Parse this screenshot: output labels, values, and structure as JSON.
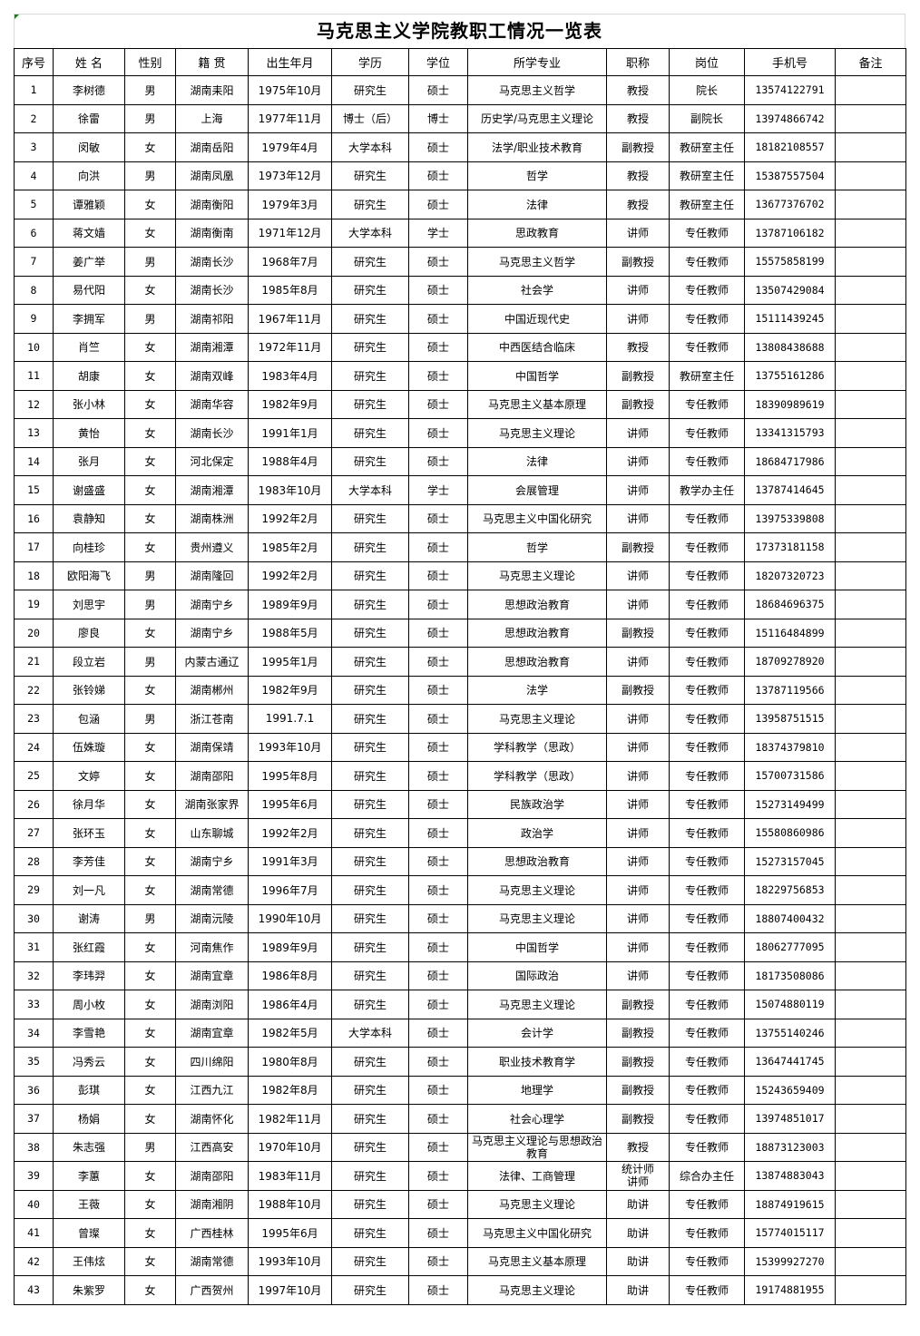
{
  "title": "马克思主义学院教职工情况一览表",
  "headers": [
    "序号",
    "姓 名",
    "性别",
    "籍 贯",
    "出生年月",
    "学历",
    "学位",
    "所学专业",
    "职称",
    "岗位",
    "手机号",
    "备注"
  ],
  "rows": [
    [
      "1",
      "李树德",
      "男",
      "湖南耒阳",
      "1975年10月",
      "研究生",
      "硕士",
      "马克思主义哲学",
      "教授",
      "院长",
      "13574122791",
      ""
    ],
    [
      "2",
      "徐雷",
      "男",
      "上海",
      "1977年11月",
      "博士（后）",
      "博士",
      "历史学/马克思主义理论",
      "教授",
      "副院长",
      "13974866742",
      ""
    ],
    [
      "3",
      "闵敏",
      "女",
      "湖南岳阳",
      "1979年4月",
      "大学本科",
      "硕士",
      "法学/职业技术教育",
      "副教授",
      "教研室主任",
      "18182108557",
      ""
    ],
    [
      "4",
      "向洪",
      "男",
      "湖南凤凰",
      "1973年12月",
      "研究生",
      "硕士",
      "哲学",
      "教授",
      "教研室主任",
      "15387557504",
      ""
    ],
    [
      "5",
      "谭雅颖",
      "女",
      "湖南衡阳",
      "1979年3月",
      "研究生",
      "硕士",
      "法律",
      "教授",
      "教研室主任",
      "13677376702",
      ""
    ],
    [
      "6",
      "蒋文嫱",
      "女",
      "湖南衡南",
      "1971年12月",
      "大学本科",
      "学士",
      "思政教育",
      "讲师",
      "专任教师",
      "13787106182",
      ""
    ],
    [
      "7",
      "姜广举",
      "男",
      "湖南长沙",
      "1968年7月",
      "研究生",
      "硕士",
      "马克思主义哲学",
      "副教授",
      "专任教师",
      "15575858199",
      ""
    ],
    [
      "8",
      "易代阳",
      "女",
      "湖南长沙",
      "1985年8月",
      "研究生",
      "硕士",
      "社会学",
      "讲师",
      "专任教师",
      "13507429084",
      ""
    ],
    [
      "9",
      "李拥军",
      "男",
      "湖南祁阳",
      "1967年11月",
      "研究生",
      "硕士",
      "中国近现代史",
      "讲师",
      "专任教师",
      "15111439245",
      ""
    ],
    [
      "10",
      "肖竺",
      "女",
      "湖南湘潭",
      "1972年11月",
      "研究生",
      "硕士",
      "中西医结合临床",
      "教授",
      "专任教师",
      "13808438688",
      ""
    ],
    [
      "11",
      "胡康",
      "女",
      "湖南双峰",
      "1983年4月",
      "研究生",
      "硕士",
      "中国哲学",
      "副教授",
      "教研室主任",
      "13755161286",
      ""
    ],
    [
      "12",
      "张小林",
      "女",
      "湖南华容",
      "1982年9月",
      "研究生",
      "硕士",
      "马克思主义基本原理",
      "副教授",
      "专任教师",
      "18390989619",
      ""
    ],
    [
      "13",
      "黄怡",
      "女",
      "湖南长沙",
      "1991年1月",
      "研究生",
      "硕士",
      "马克思主义理论",
      "讲师",
      "专任教师",
      "13341315793",
      ""
    ],
    [
      "14",
      "张月",
      "女",
      "河北保定",
      "1988年4月",
      "研究生",
      "硕士",
      "法律",
      "讲师",
      "专任教师",
      "18684717986",
      ""
    ],
    [
      "15",
      "谢盛盛",
      "女",
      "湖南湘潭",
      "1983年10月",
      "大学本科",
      "学士",
      "会展管理",
      "讲师",
      "教学办主任",
      "13787414645",
      ""
    ],
    [
      "16",
      "袁静知",
      "女",
      "湖南株洲",
      "1992年2月",
      "研究生",
      "硕士",
      "马克思主义中国化研究",
      "讲师",
      "专任教师",
      "13975339808",
      ""
    ],
    [
      "17",
      "向桂珍",
      "女",
      "贵州遵义",
      "1985年2月",
      "研究生",
      "硕士",
      "哲学",
      "副教授",
      "专任教师",
      "17373181158",
      ""
    ],
    [
      "18",
      "欧阳海飞",
      "男",
      "湖南隆回",
      "1992年2月",
      "研究生",
      "硕士",
      "马克思主义理论",
      "讲师",
      "专任教师",
      "18207320723",
      ""
    ],
    [
      "19",
      "刘思宇",
      "男",
      "湖南宁乡",
      "1989年9月",
      "研究生",
      "硕士",
      "思想政治教育",
      "讲师",
      "专任教师",
      "18684696375",
      ""
    ],
    [
      "20",
      "廖良",
      "女",
      "湖南宁乡",
      "1988年5月",
      "研究生",
      "硕士",
      "思想政治教育",
      "副教授",
      "专任教师",
      "15116484899",
      ""
    ],
    [
      "21",
      "段立岩",
      "男",
      "内蒙古通辽",
      "1995年1月",
      "研究生",
      "硕士",
      "思想政治教育",
      "讲师",
      "专任教师",
      "18709278920",
      ""
    ],
    [
      "22",
      "张铃娣",
      "女",
      "湖南郴州",
      "1982年9月",
      "研究生",
      "硕士",
      "法学",
      "副教授",
      "专任教师",
      "13787119566",
      ""
    ],
    [
      "23",
      "包涵",
      "男",
      "浙江苍南",
      "1991.7.1",
      "研究生",
      "硕士",
      "马克思主义理论",
      "讲师",
      "专任教师",
      "13958751515",
      ""
    ],
    [
      "24",
      "伍姝璇",
      "女",
      "湖南保靖",
      "1993年10月",
      "研究生",
      "硕士",
      "学科教学（思政）",
      "讲师",
      "专任教师",
      "18374379810",
      ""
    ],
    [
      "25",
      "文婷",
      "女",
      "湖南邵阳",
      "1995年8月",
      "研究生",
      "硕士",
      "学科教学（思政）",
      "讲师",
      "专任教师",
      "15700731586",
      ""
    ],
    [
      "26",
      "徐月华",
      "女",
      "湖南张家界",
      "1995年6月",
      "研究生",
      "硕士",
      "民族政治学",
      "讲师",
      "专任教师",
      "15273149499",
      ""
    ],
    [
      "27",
      "张环玉",
      "女",
      "山东聊城",
      "1992年2月",
      "研究生",
      "硕士",
      "政治学",
      "讲师",
      "专任教师",
      "15580860986",
      ""
    ],
    [
      "28",
      "李芳佳",
      "女",
      "湖南宁乡",
      "1991年3月",
      "研究生",
      "硕士",
      "思想政治教育",
      "讲师",
      "专任教师",
      "15273157045",
      ""
    ],
    [
      "29",
      "刘一凡",
      "女",
      "湖南常德",
      "1996年7月",
      "研究生",
      "硕士",
      "马克思主义理论",
      "讲师",
      "专任教师",
      "18229756853",
      ""
    ],
    [
      "30",
      "谢涛",
      "男",
      "湖南沅陵",
      "1990年10月",
      "研究生",
      "硕士",
      "马克思主义理论",
      "讲师",
      "专任教师",
      "18807400432",
      ""
    ],
    [
      "31",
      "张红霞",
      "女",
      "河南焦作",
      "1989年9月",
      "研究生",
      "硕士",
      "中国哲学",
      "讲师",
      "专任教师",
      "18062777095",
      ""
    ],
    [
      "32",
      "李玮羿",
      "女",
      "湖南宜章",
      "1986年8月",
      "研究生",
      "硕士",
      "国际政治",
      "讲师",
      "专任教师",
      "18173508086",
      ""
    ],
    [
      "33",
      "周小枚",
      "女",
      "湖南浏阳",
      "1986年4月",
      "研究生",
      "硕士",
      "马克思主义理论",
      "副教授",
      "专任教师",
      "15074880119",
      ""
    ],
    [
      "34",
      "李雪艳",
      "女",
      "湖南宜章",
      "1982年5月",
      "大学本科",
      "硕士",
      "会计学",
      "副教授",
      "专任教师",
      "13755140246",
      ""
    ],
    [
      "35",
      "冯秀云",
      "女",
      "四川绵阳",
      "1980年8月",
      "研究生",
      "硕士",
      "职业技术教育学",
      "副教授",
      "专任教师",
      "13647441745",
      ""
    ],
    [
      "36",
      "彭琪",
      "女",
      "江西九江",
      "1982年8月",
      "研究生",
      "硕士",
      "地理学",
      "副教授",
      "专任教师",
      "15243659409",
      ""
    ],
    [
      "37",
      "杨娟",
      "女",
      "湖南怀化",
      "1982年11月",
      "研究生",
      "硕士",
      "社会心理学",
      "副教授",
      "专任教师",
      "13974851017",
      ""
    ],
    [
      "38",
      "朱志强",
      "男",
      "江西高安",
      "1970年10月",
      "研究生",
      "硕士",
      "马克思主义理论与思想政治教育",
      "教授",
      "专任教师",
      "18873123003",
      ""
    ],
    [
      "39",
      "李蕙",
      "女",
      "湖南邵阳",
      "1983年11月",
      "研究生",
      "硕士",
      "法律、工商管理",
      "统计师 讲师",
      "综合办主任",
      "13874883043",
      ""
    ],
    [
      "40",
      "王薇",
      "女",
      "湖南湘阴",
      "1988年10月",
      "研究生",
      "硕士",
      "马克思主义理论",
      "助讲",
      "专任教师",
      "18874919615",
      ""
    ],
    [
      "41",
      "曾璨",
      "女",
      "广西桂林",
      "1995年6月",
      "研究生",
      "硕士",
      "马克思主义中国化研究",
      "助讲",
      "专任教师",
      "15774015117",
      ""
    ],
    [
      "42",
      "王伟炫",
      "女",
      "湖南常德",
      "1993年10月",
      "研究生",
      "硕士",
      "马克思主义基本原理",
      "助讲",
      "专任教师",
      "15399927270",
      ""
    ],
    [
      "43",
      "朱紫罗",
      "女",
      "广西贺州",
      "1997年10月",
      "研究生",
      "硕士",
      "马克思主义理论",
      "助讲",
      "专任教师",
      "19174881955",
      ""
    ]
  ]
}
